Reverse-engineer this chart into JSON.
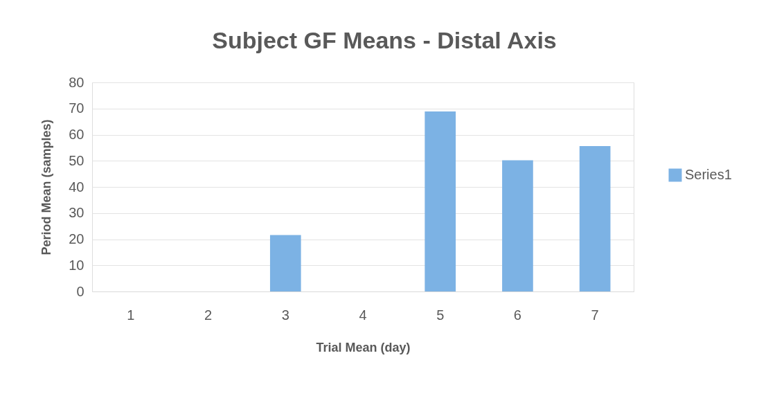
{
  "chart_data": {
    "type": "bar",
    "title": "Subject GF Means - Distal Axis",
    "xlabel": "Trial Mean (day)",
    "ylabel": "Period Mean (samples)",
    "categories": [
      "1",
      "2",
      "3",
      "4",
      "5",
      "6",
      "7"
    ],
    "series": [
      {
        "name": "Series1",
        "color": "#7cb2e4",
        "values": [
          null,
          null,
          21.6,
          null,
          68.9,
          50.2,
          55.6
        ]
      }
    ],
    "ylim": [
      0,
      80
    ],
    "yticks": [
      0,
      10,
      20,
      30,
      40,
      50,
      60,
      70,
      80
    ],
    "grid": "y",
    "legend": "right"
  }
}
